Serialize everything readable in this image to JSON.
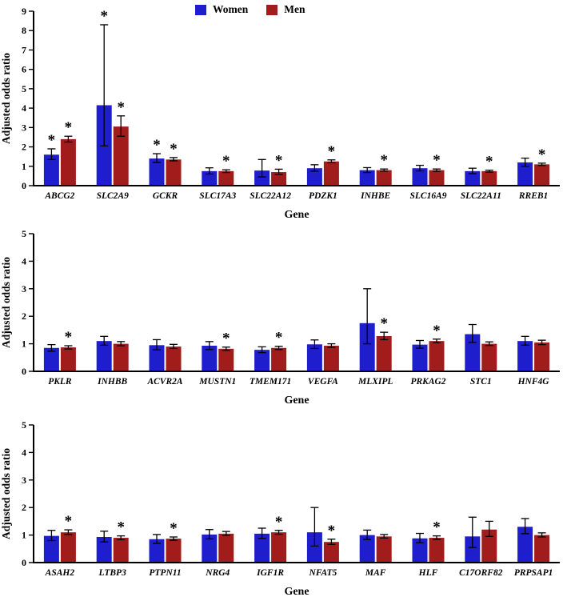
{
  "legend": {
    "women_label": "Women",
    "men_label": "Men",
    "women_color": "#1e1ecc",
    "men_color": "#a31c1c"
  },
  "chart_data": [
    {
      "type": "bar",
      "panel": "top",
      "ylabel": "Adjusted odds ratio",
      "xlabel": "Gene",
      "ylim": [
        0,
        9
      ],
      "grid": false,
      "legend_position": "top",
      "categories": [
        "ABCG2",
        "SLC2A9",
        "GCKR",
        "SLC17A3",
        "SLC22A12",
        "PDZK1",
        "INHBE",
        "SLC16A9",
        "SLC22A11",
        "RREB1"
      ],
      "series": [
        {
          "name": "Women",
          "color": "#1e1ecc",
          "values": [
            1.6,
            4.15,
            1.4,
            0.75,
            0.78,
            0.9,
            0.8,
            0.9,
            0.75,
            1.2
          ],
          "ci_low": [
            1.35,
            2.05,
            1.2,
            0.6,
            0.45,
            0.75,
            0.68,
            0.76,
            0.62,
            1.0
          ],
          "ci_high": [
            1.9,
            8.3,
            1.65,
            0.92,
            1.35,
            1.08,
            0.93,
            1.05,
            0.9,
            1.42
          ],
          "sig": [
            true,
            true,
            true,
            false,
            false,
            false,
            false,
            false,
            false,
            false
          ]
        },
        {
          "name": "Men",
          "color": "#a31c1c",
          "values": [
            2.4,
            3.05,
            1.35,
            0.75,
            0.7,
            1.25,
            0.8,
            0.8,
            0.75,
            1.1
          ],
          "ci_low": [
            2.25,
            2.55,
            1.28,
            0.68,
            0.58,
            1.18,
            0.75,
            0.74,
            0.7,
            1.04
          ],
          "ci_high": [
            2.55,
            3.6,
            1.45,
            0.82,
            0.85,
            1.33,
            0.86,
            0.86,
            0.8,
            1.16
          ],
          "sig": [
            true,
            true,
            true,
            true,
            true,
            true,
            true,
            true,
            true,
            true
          ]
        }
      ]
    },
    {
      "type": "bar",
      "panel": "middle",
      "ylabel": "Adjusted odds ratio",
      "xlabel": "Gene",
      "ylim": [
        0,
        5
      ],
      "grid": false,
      "categories": [
        "PKLR",
        "INHBB",
        "ACVR2A",
        "MUSTN1",
        "TMEM171",
        "VEGFA",
        "MLXIPL",
        "PRKAG2",
        "STC1",
        "HNF4G"
      ],
      "series": [
        {
          "name": "Women",
          "color": "#1e1ecc",
          "values": [
            0.85,
            1.1,
            0.95,
            0.93,
            0.78,
            0.98,
            1.75,
            0.97,
            1.35,
            1.1
          ],
          "ci_low": [
            0.73,
            0.95,
            0.78,
            0.79,
            0.68,
            0.83,
            1.0,
            0.84,
            1.05,
            0.95
          ],
          "ci_high": [
            0.97,
            1.27,
            1.15,
            1.08,
            0.89,
            1.14,
            3.0,
            1.12,
            1.7,
            1.27
          ],
          "sig": [
            false,
            false,
            false,
            false,
            false,
            false,
            false,
            false,
            false,
            false
          ]
        },
        {
          "name": "Men",
          "color": "#a31c1c",
          "values": [
            0.87,
            1.0,
            0.9,
            0.82,
            0.85,
            0.93,
            1.28,
            1.1,
            1.0,
            1.05
          ],
          "ci_low": [
            0.81,
            0.93,
            0.83,
            0.76,
            0.79,
            0.87,
            1.15,
            1.04,
            0.94,
            0.97
          ],
          "ci_high": [
            0.93,
            1.08,
            0.98,
            0.88,
            0.91,
            1.0,
            1.42,
            1.17,
            1.07,
            1.13
          ],
          "sig": [
            true,
            false,
            false,
            true,
            true,
            false,
            true,
            true,
            false,
            false
          ]
        }
      ]
    },
    {
      "type": "bar",
      "panel": "bottom",
      "ylabel": "Adjusted odds ratio",
      "xlabel": "Gene",
      "ylim": [
        0,
        5
      ],
      "grid": false,
      "categories": [
        "ASAH2",
        "LTBP3",
        "PTPN11",
        "NRG4",
        "IGF1R",
        "NFAT5",
        "MAF",
        "HLF",
        "C17ORF82",
        "PRPSAP1"
      ],
      "series": [
        {
          "name": "Women",
          "color": "#1e1ecc",
          "values": [
            0.97,
            0.93,
            0.85,
            1.02,
            1.05,
            1.1,
            1.0,
            0.88,
            0.95,
            1.3
          ],
          "ci_low": [
            0.8,
            0.75,
            0.7,
            0.86,
            0.88,
            0.6,
            0.84,
            0.72,
            0.55,
            1.05
          ],
          "ci_high": [
            1.17,
            1.14,
            1.02,
            1.2,
            1.25,
            2.0,
            1.18,
            1.06,
            1.65,
            1.6
          ],
          "sig": [
            false,
            false,
            false,
            false,
            false,
            false,
            false,
            false,
            false,
            false
          ]
        },
        {
          "name": "Men",
          "color": "#a31c1c",
          "values": [
            1.1,
            0.9,
            0.87,
            1.05,
            1.1,
            0.75,
            0.95,
            0.9,
            1.2,
            1.0
          ],
          "ci_low": [
            1.02,
            0.83,
            0.81,
            0.98,
            1.03,
            0.66,
            0.89,
            0.84,
            0.95,
            0.93
          ],
          "ci_high": [
            1.19,
            0.97,
            0.93,
            1.13,
            1.17,
            0.85,
            1.02,
            0.97,
            1.5,
            1.08
          ],
          "sig": [
            true,
            true,
            true,
            false,
            true,
            true,
            false,
            true,
            false,
            false
          ]
        }
      ]
    }
  ]
}
